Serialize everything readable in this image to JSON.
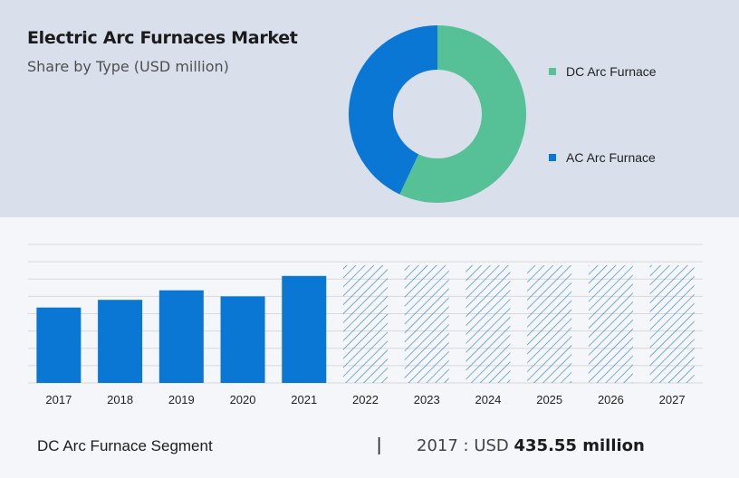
{
  "header": {
    "title": "Electric Arc Furnaces Market",
    "subtitle": "Share by Type (USD million)"
  },
  "chart_data": [
    {
      "type": "pie",
      "variant": "donut",
      "series": [
        {
          "name": "DC Arc Furnace",
          "share": 57,
          "color": "#56c196"
        },
        {
          "name": "AC Arc Furnace",
          "share": 43,
          "color": "#0a77d4"
        }
      ],
      "legend_position": "right"
    },
    {
      "type": "bar",
      "categories": [
        "2017",
        "2018",
        "2019",
        "2020",
        "2021",
        "2022",
        "2023",
        "2024",
        "2025",
        "2026",
        "2027"
      ],
      "values": [
        435.55,
        480,
        535,
        500,
        618,
        null,
        null,
        null,
        null,
        null,
        null
      ],
      "forecast_categories": [
        "2022",
        "2023",
        "2024",
        "2025",
        "2026",
        "2027"
      ],
      "forecast_pattern": "hatched",
      "ylim": [
        0,
        800
      ],
      "grid": true,
      "bar_color": "#0a77d4",
      "hatch_color": "#2f86c6"
    }
  ],
  "footer": {
    "segment_label": "DC Arc Furnace Segment",
    "separator": "|",
    "year_prefix": "2017 : USD ",
    "value": "435.55 million"
  }
}
